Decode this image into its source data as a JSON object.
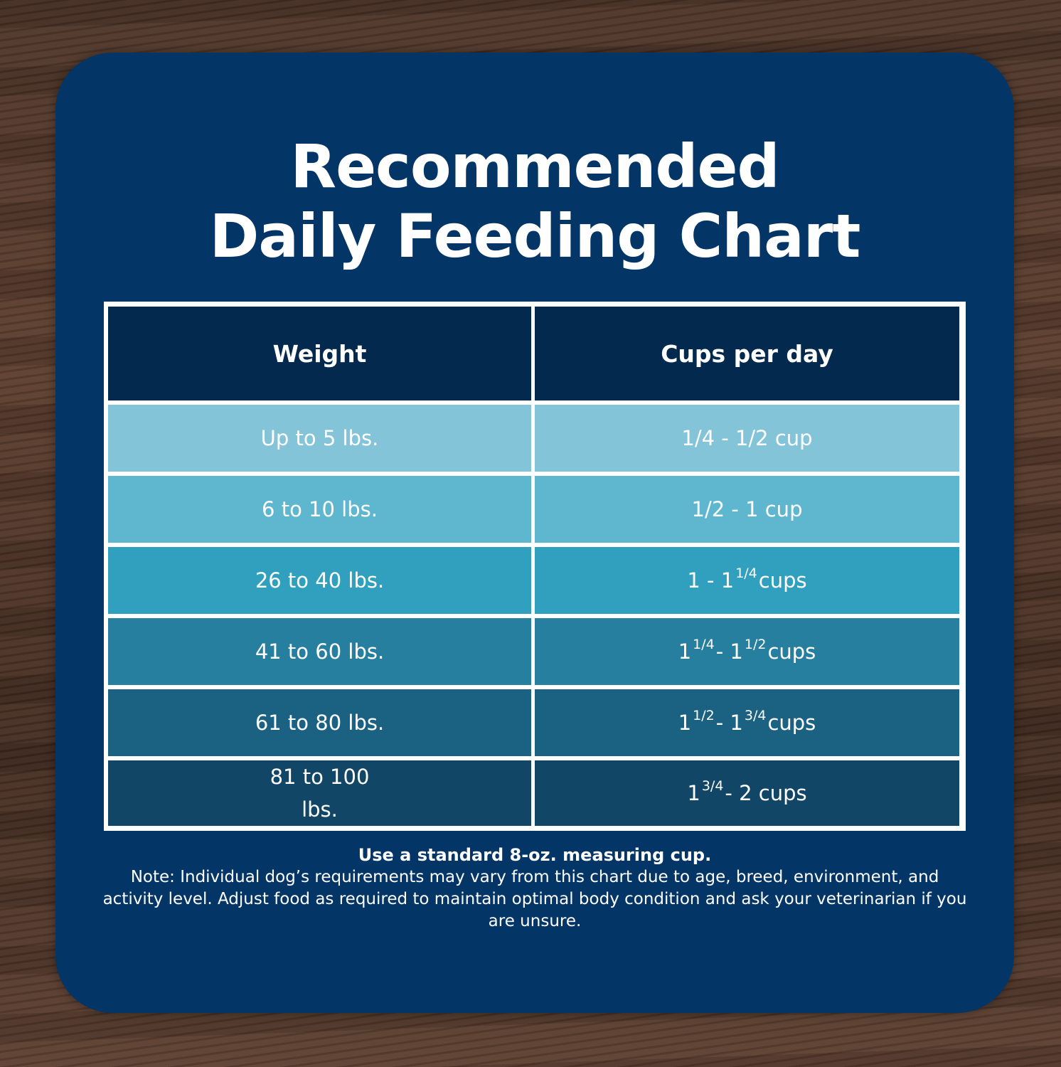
{
  "title": {
    "line1": "Recommended",
    "line2": "Daily Feeding Chart"
  },
  "table": {
    "headers": [
      "Weight",
      "Cups per day"
    ],
    "rows": [
      {
        "weight": "Up to 5 lbs.",
        "cups": "1/4 - 1/2 cup"
      },
      {
        "weight": "6 to 10 lbs.",
        "cups": "1/2 - 1 cup"
      },
      {
        "weight": "26 to 40 lbs.",
        "cups": "1 - 1 1/4 cups"
      },
      {
        "weight": "41 to 60 lbs.",
        "cups": "1 1/4 - 1 1/2 cups"
      },
      {
        "weight": "61 to 80 lbs.",
        "cups": "1 1/2 - 1 3/4 cups"
      },
      {
        "weight": "81 to 100 lbs.",
        "cups": "1 3/4 - 2 cups"
      }
    ],
    "row_colors": [
      "#83c4d8",
      "#5fb6cf",
      "#319fbe",
      "#277f9f",
      "#1b6282",
      "#124667"
    ],
    "header_color": "#03294f"
  },
  "notes": {
    "measure": "Use a standard 8-oz. measuring cup.",
    "note": "Note: Individual dog’s requirements may vary from this chart due to age, breed, environment, and activity level. Adjust food as required to maintain optimal body condition and ask your veterinarian if you are unsure."
  },
  "colors": {
    "card": "#033567",
    "background": "#4a3328",
    "text": "#ffffff"
  }
}
